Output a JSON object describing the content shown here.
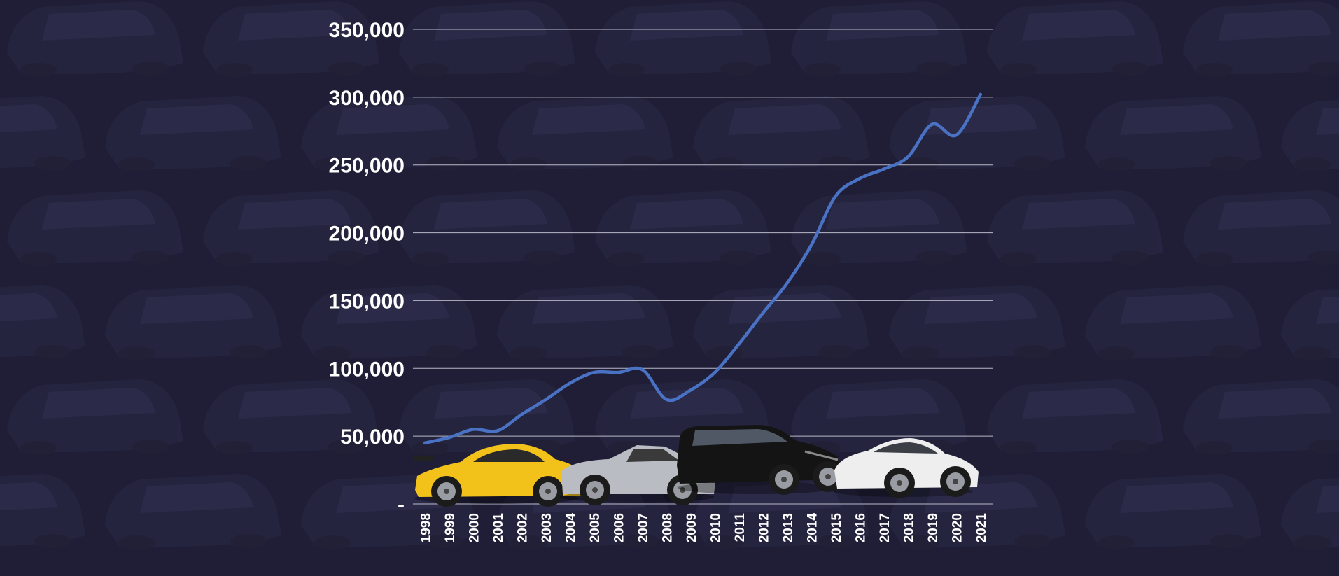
{
  "chart_data": {
    "type": "line",
    "title": "",
    "xlabel": "",
    "ylabel": "",
    "x": [
      "1998",
      "1999",
      "2000",
      "2001",
      "2002",
      "2003",
      "2004",
      "2005",
      "2006",
      "2007",
      "2008",
      "2009",
      "2010",
      "2011",
      "2012",
      "2013",
      "2014",
      "2015",
      "2016",
      "2017",
      "2018",
      "2019",
      "2020",
      "2021"
    ],
    "series": [
      {
        "color": "#4a72c4",
        "values": [
          45000,
          49000,
          55000,
          54000,
          66000,
          77000,
          89000,
          97000,
          97000,
          99000,
          77000,
          84000,
          97000,
          118000,
          141000,
          163000,
          191000,
          227000,
          240000,
          247000,
          256000,
          280000,
          272000,
          302000
        ]
      }
    ],
    "ylim": [
      0,
      350000
    ],
    "yticks": [
      0,
      50000,
      100000,
      150000,
      200000,
      250000,
      300000,
      350000
    ],
    "ytick_labels": [
      "-",
      "50,000",
      "100,000",
      "150,000",
      "200,000",
      "250,000",
      "300,000",
      "350,000"
    ],
    "grid": true,
    "legend": "none",
    "background": "#1f1e36",
    "gridline_color": "#b8b8c8",
    "text_color": "#ffffff"
  },
  "decorations": {
    "cars": [
      {
        "name": "yellow-coupe",
        "color": "#f2c21b"
      },
      {
        "name": "silver-roadster",
        "color": "#b9bcc3"
      },
      {
        "name": "black-suv",
        "color": "#141414"
      },
      {
        "name": "white-sedan",
        "color": "#eeeeee"
      }
    ]
  }
}
